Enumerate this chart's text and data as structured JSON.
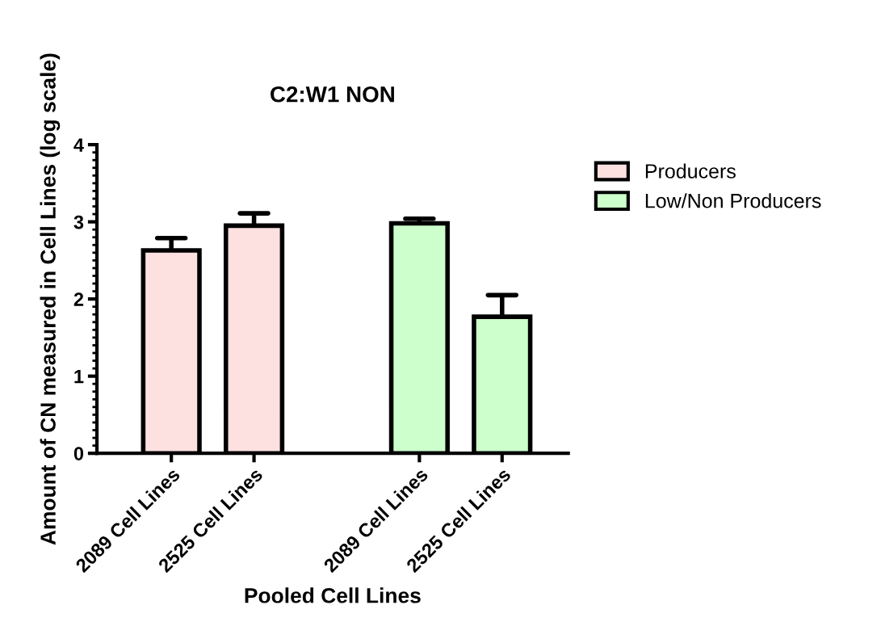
{
  "chart_data": {
    "type": "bar",
    "title": "C2:W1 NON",
    "xlabel": "Pooled Cell Lines",
    "ylabel": "Amount of CN measured in Cell Lines (log scale)",
    "categories": [
      "2089 Cell Lines",
      "2525 Cell Lines",
      null,
      "2089 Cell Lines",
      "2525 Cell Lines"
    ],
    "series": [
      {
        "name": "Producers",
        "color": "#fde0e0",
        "values": [
          2.63,
          2.95,
          null,
          null,
          null
        ],
        "errors": [
          [
            2.63,
            2.79
          ],
          [
            2.95,
            3.11
          ],
          null,
          null,
          null
        ]
      },
      {
        "name": "Low/Non Producers",
        "color": "#ccffcc",
        "values": [
          null,
          null,
          null,
          2.98,
          1.77
        ],
        "errors": [
          null,
          null,
          null,
          [
            2.98,
            3.04
          ],
          [
            1.77,
            2.05
          ]
        ]
      }
    ],
    "ylim": [
      0,
      4
    ],
    "yticks": [
      0,
      1,
      2,
      3,
      4
    ],
    "grid": false,
    "legend": "top right"
  }
}
